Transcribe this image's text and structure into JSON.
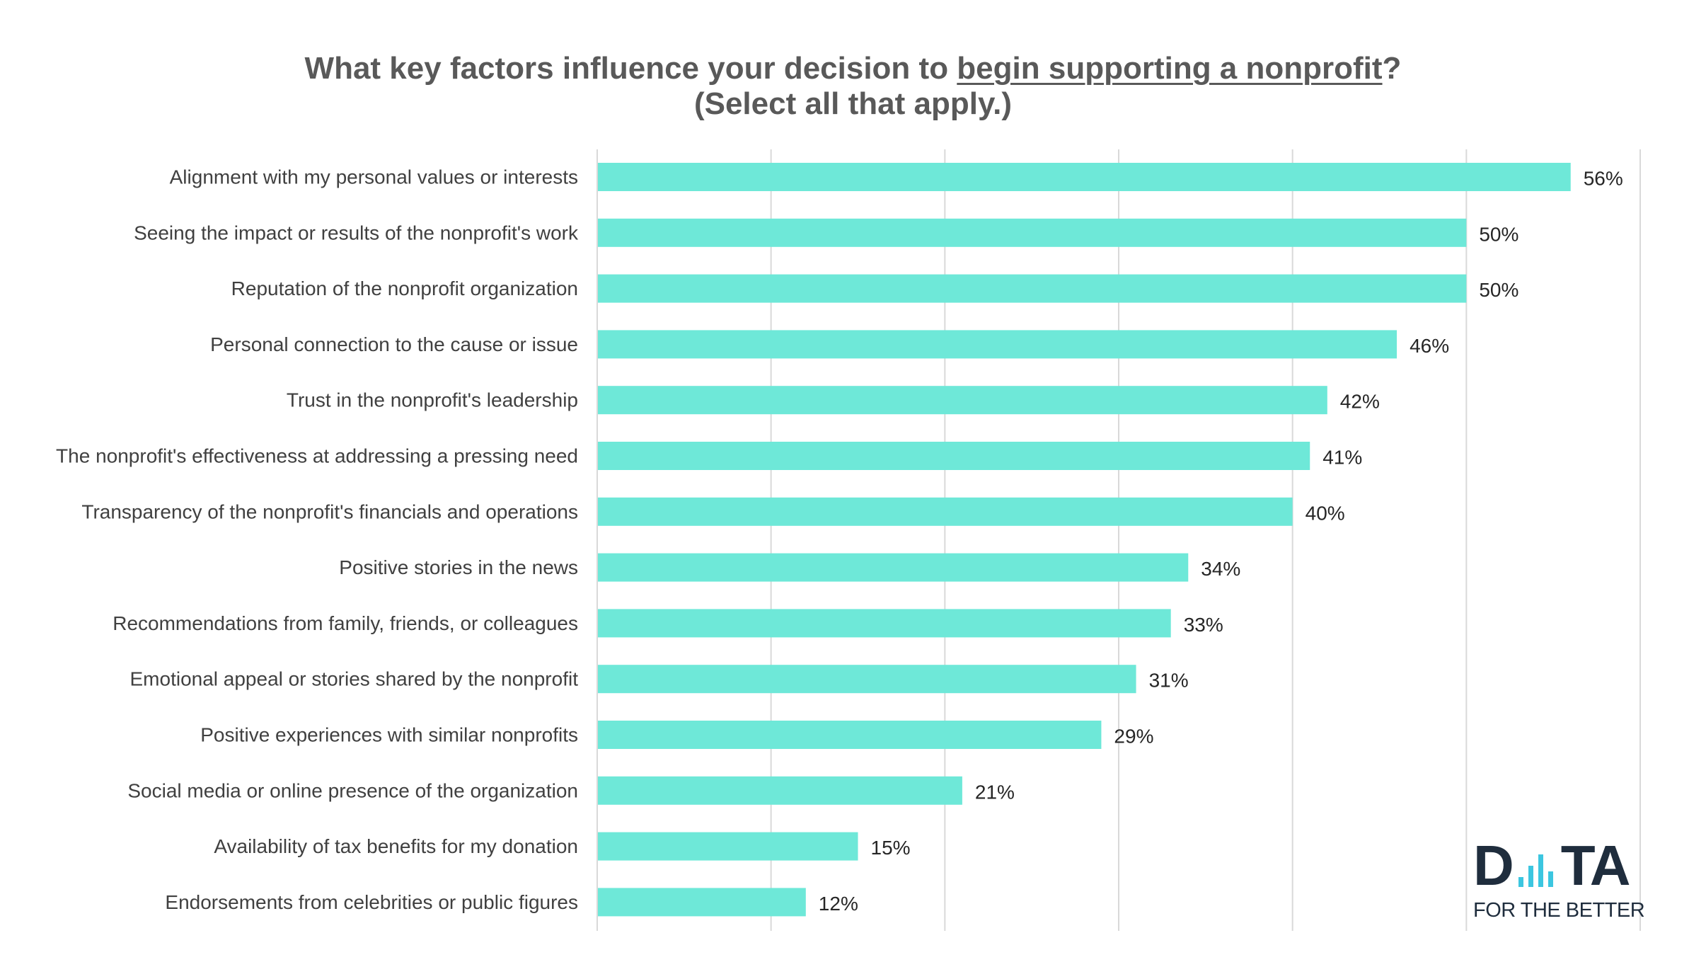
{
  "chart_data": {
    "type": "bar",
    "orientation": "horizontal",
    "title_line1_prefix": "What key factors influence your decision to ",
    "title_line1_underlined": "begin supporting a nonprofit",
    "title_line1_suffix": "?",
    "title_line2": "(Select all that apply.)",
    "categories": [
      "Alignment with my personal values or interests",
      "Seeing the impact or results of the nonprofit's work",
      "Reputation of the nonprofit organization",
      "Personal connection to the cause or issue",
      "Trust in the nonprofit's leadership",
      "The nonprofit's effectiveness at addressing a pressing need",
      "Transparency of the nonprofit's financials and operations",
      "Positive stories in the news",
      "Recommendations from family, friends, or colleagues",
      "Emotional appeal or stories shared by the nonprofit",
      "Positive experiences with similar nonprofits",
      "Social media or online presence of the organization",
      "Availability of tax benefits for my donation",
      "Endorsements from celebrities or public figures"
    ],
    "values": [
      56,
      50,
      50,
      46,
      42,
      41,
      40,
      34,
      33,
      31,
      29,
      21,
      15,
      12
    ],
    "value_labels": [
      "56%",
      "50%",
      "50%",
      "46%",
      "42%",
      "41%",
      "40%",
      "34%",
      "33%",
      "31%",
      "29%",
      "21%",
      "15%",
      "12%"
    ],
    "xlim": [
      0,
      60
    ],
    "grid": true,
    "bar_color": "#6ee8d8"
  },
  "logo": {
    "text_left": "D",
    "text_right": "TA",
    "tagline": "FOR THE BETTER",
    "bars_color": "#3cc6e0"
  }
}
